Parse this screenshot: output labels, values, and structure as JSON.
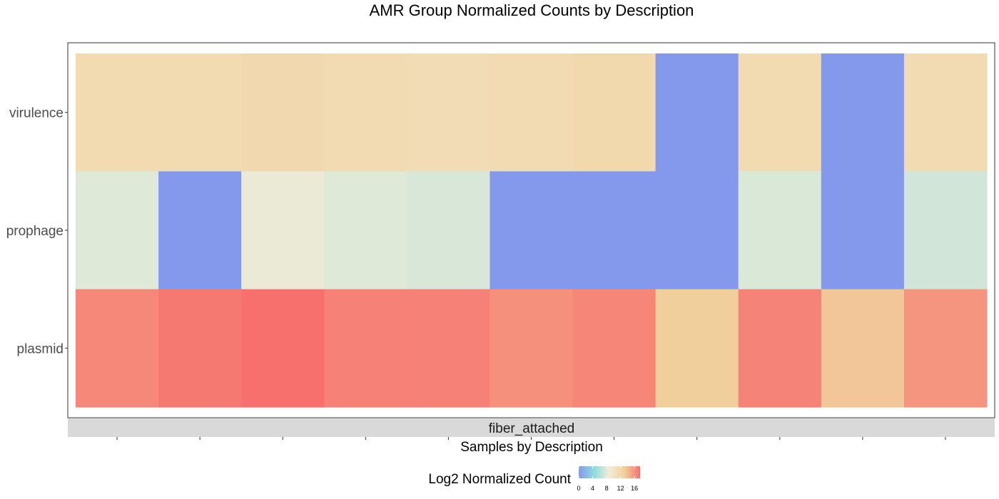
{
  "chart_data": {
    "type": "heatmap",
    "title": "AMR Group Normalized Counts by Description",
    "facet": "fiber_attached",
    "xlabel": "Samples by Description",
    "ylabel": "",
    "x_count": 11,
    "rows": [
      "virulence",
      "prophage",
      "plasmid"
    ],
    "values": [
      [
        11.6,
        11.6,
        11.8,
        11.5,
        11.2,
        11.5,
        11.9,
        0,
        11.6,
        0,
        11.4
      ],
      [
        7.9,
        0,
        8.4,
        7.9,
        7.6,
        0,
        0,
        0,
        7.7,
        0,
        7.3
      ],
      [
        16.5,
        17.2,
        17.6,
        16.8,
        16.8,
        16.1,
        16.6,
        13.2,
        16.7,
        13.6,
        15.9
      ]
    ],
    "legend": {
      "title": "Log2 Normalized Count",
      "ticks": [
        0,
        4,
        8,
        12,
        16
      ],
      "range": [
        0,
        17.6
      ],
      "colors": [
        "#8599ec",
        "#8fdbdf",
        "#f3ecd5",
        "#f1cf9c",
        "#f7706d"
      ]
    },
    "grid": false
  }
}
